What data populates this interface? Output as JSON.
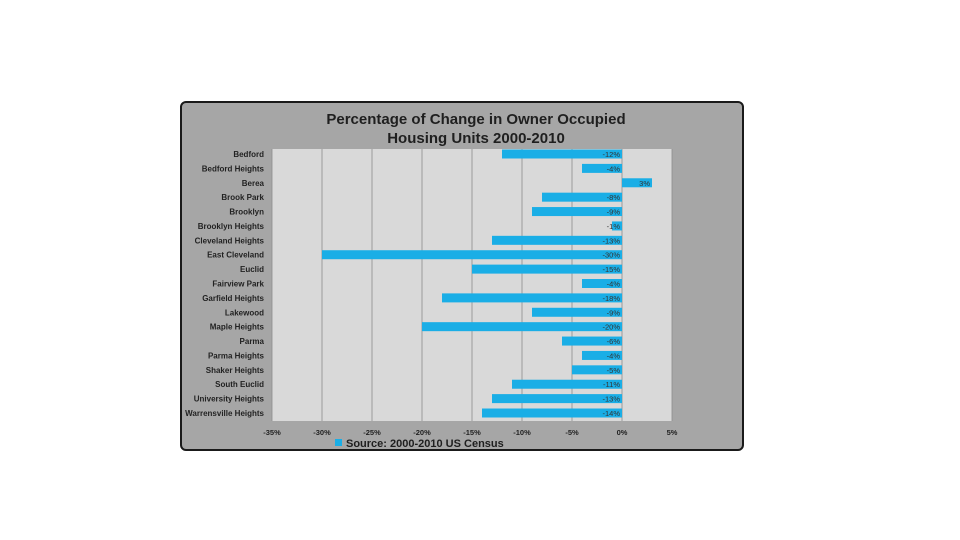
{
  "chart_data": {
    "type": "bar",
    "orientation": "horizontal",
    "title": [
      "Percentage of Change in Owner Occupied",
      "Housing Units 2000-2010"
    ],
    "categories": [
      "Bedford",
      "Bedford Heights",
      "Berea",
      "Brook Park",
      "Brooklyn",
      "Brooklyn Heights",
      "Cleveland Heights",
      "East Cleveland",
      "Euclid",
      "Fairview Park",
      "Garfield Heights",
      "Lakewood",
      "Maple Heights",
      "Parma",
      "Parma Heights",
      "Shaker Heights",
      "South Euclid",
      "University Heights",
      "Warrensville Heights"
    ],
    "values": [
      -12,
      -4,
      3,
      -8,
      -9,
      -1,
      -13,
      -30,
      -15,
      -4,
      -18,
      -9,
      -20,
      -6,
      -4,
      -5,
      -11,
      -13,
      -14
    ],
    "data_labels": [
      "-12%",
      "-4%",
      "3%",
      "-8%",
      "-9%",
      "-1%",
      "-13%",
      "-30%",
      "-15%",
      "-4%",
      "-18%",
      "-9%",
      "-20%",
      "-6%",
      "-4%",
      "-5%",
      "-11%",
      "-13%",
      "-14%"
    ],
    "xlim": [
      -35,
      5
    ],
    "x_ticks": [
      -35,
      -30,
      -25,
      -20,
      -15,
      -10,
      -5,
      0,
      5
    ],
    "x_tick_labels": [
      "-35%",
      "-30%",
      "-25%",
      "-20%",
      "-15%",
      "-10%",
      "-5%",
      "0%",
      "5%"
    ],
    "legend": {
      "label": "Source: 2000-2010 US Census",
      "placement": "bottom"
    },
    "colors": {
      "bar": "#1aaee6",
      "plot_bg": "#d9d9d9",
      "frame_bg": "#a6a6a6",
      "grid": "#8c8c8c"
    },
    "grid": true
  }
}
